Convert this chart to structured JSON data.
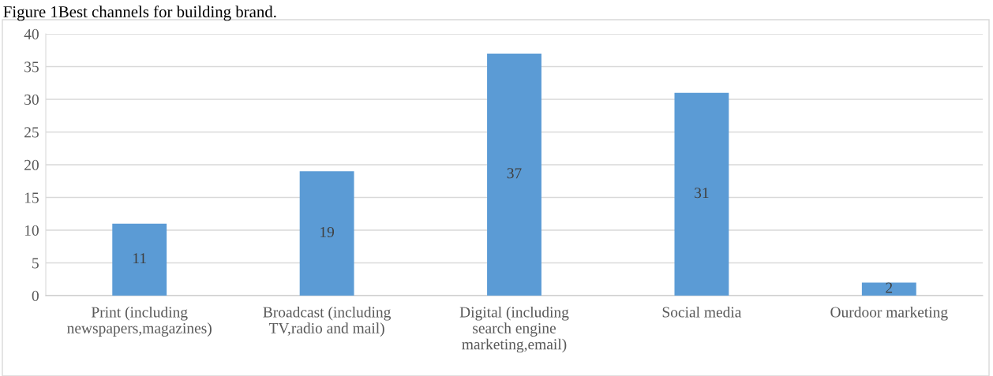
{
  "chart_data": {
    "type": "bar",
    "title": "Figure 1Best channels for building brand.",
    "categories": [
      "Print (including\nnewspapers,magazines)",
      "Broadcast (including\nTV,radio and mail)",
      "Digital (including\nsearch engine\nmarketing,email)",
      "Social media",
      "Ourdoor marketing"
    ],
    "values": [
      11,
      19,
      37,
      31,
      2
    ],
    "color": "#5b9bd5",
    "ylim": [
      0,
      40
    ],
    "yticks": [
      0,
      5,
      10,
      15,
      20,
      25,
      30,
      35,
      40
    ],
    "grid": "y",
    "data_labels": true
  }
}
